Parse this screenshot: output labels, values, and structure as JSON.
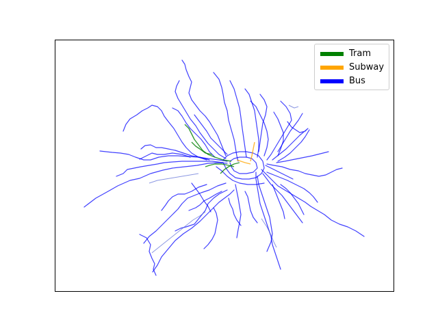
{
  "map": {
    "legend": [
      {
        "label": "Tram",
        "color": "#008000"
      },
      {
        "label": "Subway",
        "color": "#ffa500"
      },
      {
        "label": "Bus",
        "color": "#0000ff"
      }
    ]
  }
}
